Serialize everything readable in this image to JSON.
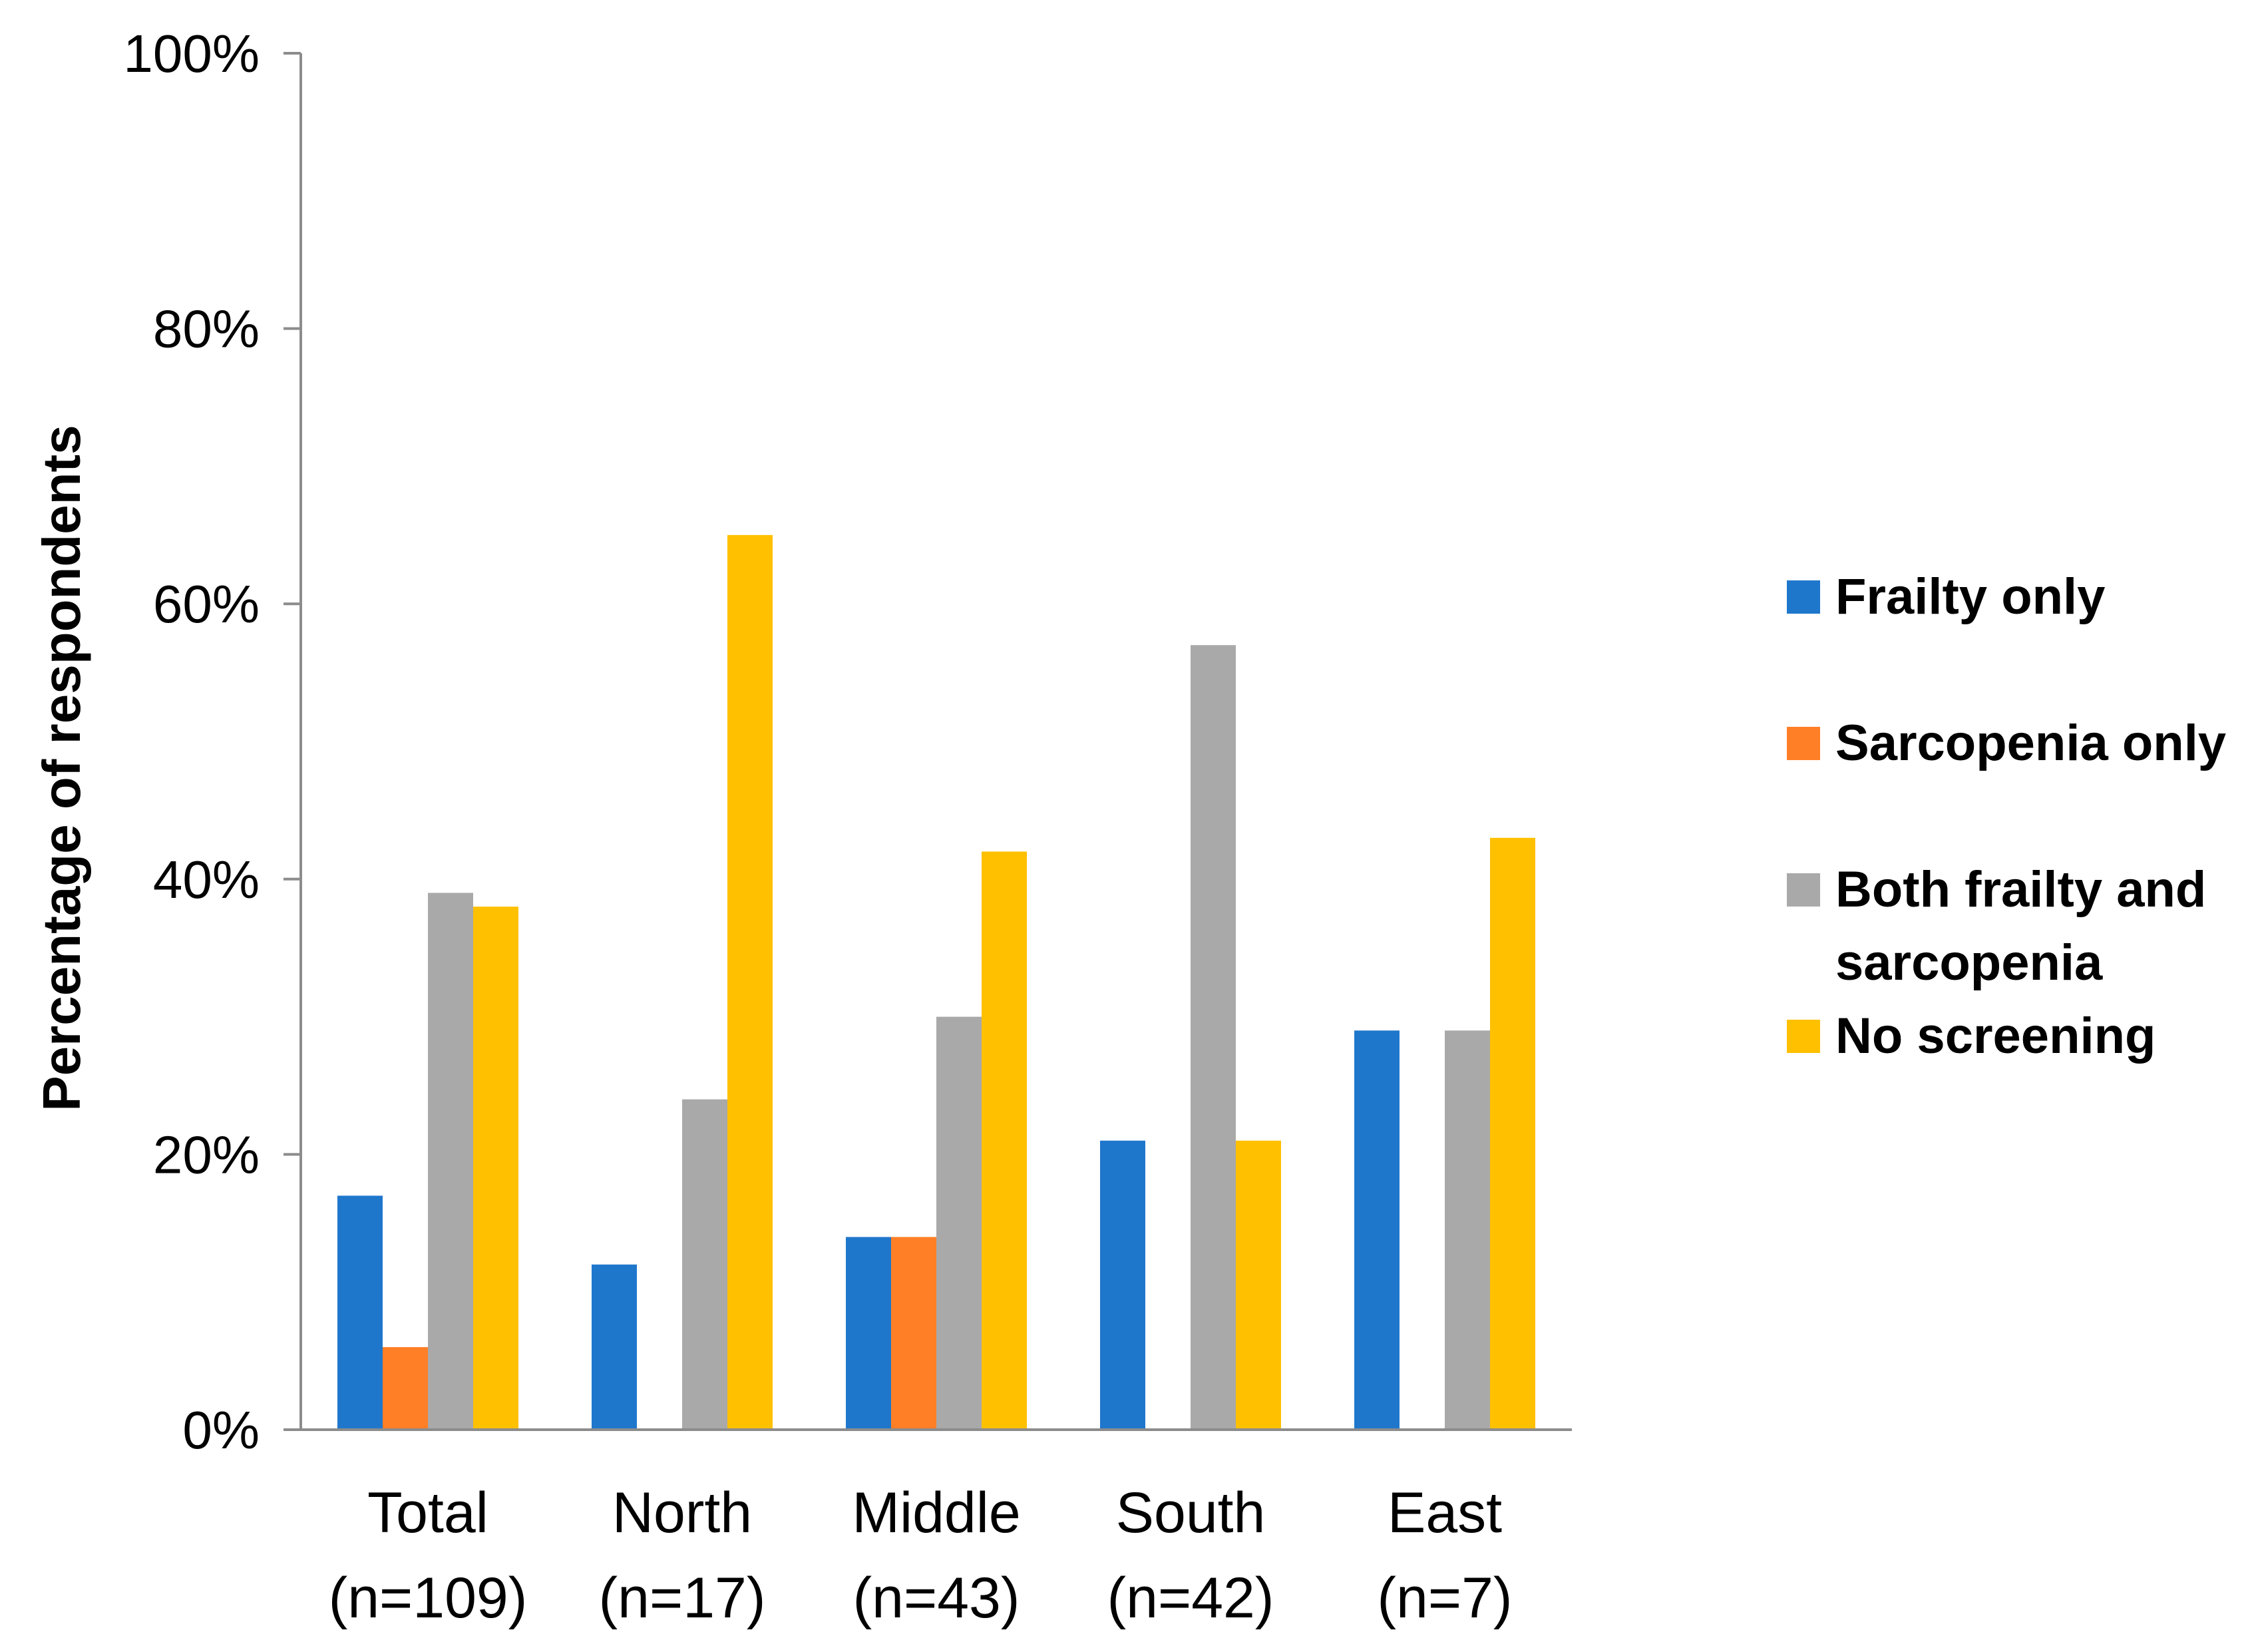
{
  "chart_data": {
    "type": "bar",
    "title": "",
    "xlabel": "",
    "ylabel": "Percentage of respondents",
    "ylim": [
      0,
      100
    ],
    "yticks": [
      "0%",
      "20%",
      "40%",
      "60%",
      "80%",
      "100%"
    ],
    "grid": false,
    "legend_position": "right",
    "categories": [
      {
        "line1": "Total",
        "line2": "(n=109)"
      },
      {
        "line1": "North",
        "line2": "(n=17)"
      },
      {
        "line1": "Middle",
        "line2": "(n=43)"
      },
      {
        "line1": "South",
        "line2": "(n=42)"
      },
      {
        "line1": "East",
        "line2": "(n=7)"
      }
    ],
    "series": [
      {
        "name": "Frailty only",
        "legend_lines": [
          "Frailty only"
        ],
        "color": "#1F77CC",
        "values": [
          17,
          12,
          14,
          21,
          29
        ]
      },
      {
        "name": "Sarcopenia only",
        "legend_lines": [
          "Sarcopenia only"
        ],
        "color": "#FF7F27",
        "values": [
          6,
          0,
          14,
          0,
          0
        ]
      },
      {
        "name": "Both frailty and sarcopenia",
        "legend_lines": [
          "Both frailty and",
          "sarcopenia"
        ],
        "color": "#A9A9A9",
        "values": [
          39,
          24,
          30,
          57,
          29
        ]
      },
      {
        "name": "No screening",
        "legend_lines": [
          "No screening"
        ],
        "color": "#FFC000",
        "values": [
          38,
          65,
          42,
          21,
          43
        ]
      }
    ]
  }
}
